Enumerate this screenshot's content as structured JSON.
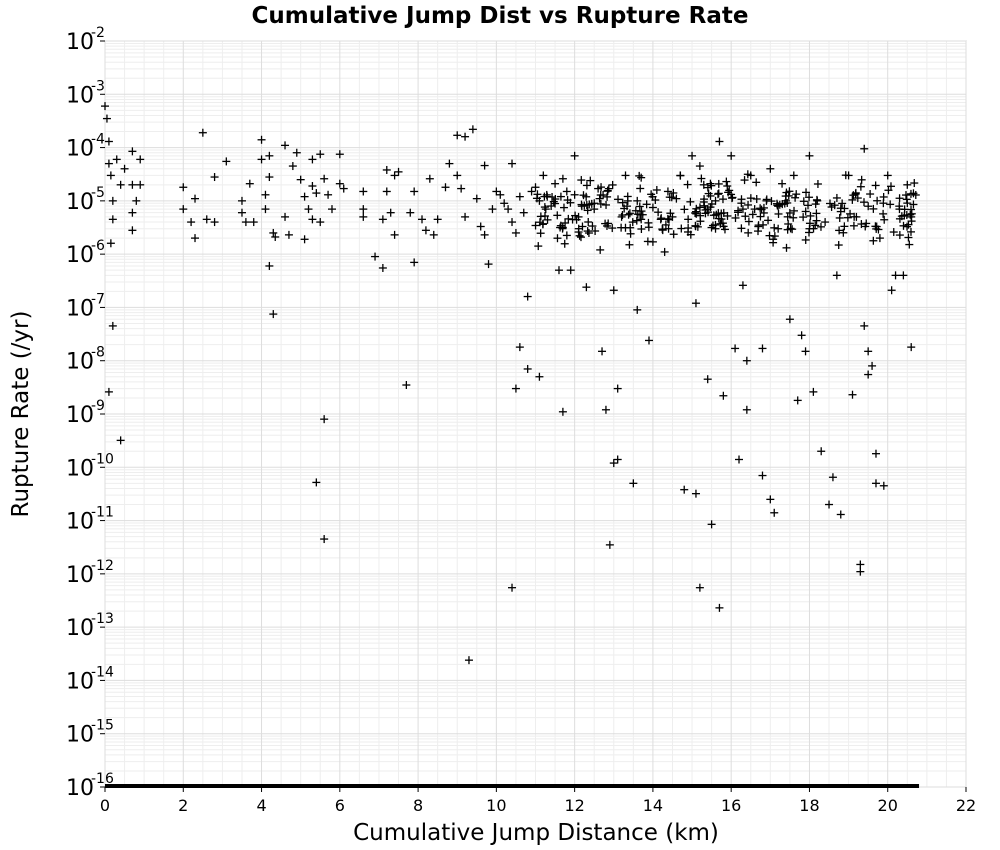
{
  "chart_data": {
    "type": "scatter",
    "title": "Cumulative Jump Dist vs Rupture Rate",
    "xlabel": "Cumulative Jump Distance (km)",
    "ylabel": "Rupture Rate (/yr)",
    "xlim": [
      0,
      22
    ],
    "ylim": [
      1e-16,
      0.01
    ],
    "y_scale": "log",
    "grid": true,
    "marker": "plus",
    "marker_color": "#000000",
    "x_ticks": [
      "0",
      "2",
      "4",
      "6",
      "8",
      "10",
      "12",
      "14",
      "16",
      "18",
      "20",
      "22"
    ],
    "y_ticks": [
      {
        "base": "10",
        "exp": "-2"
      },
      {
        "base": "10",
        "exp": "-3"
      },
      {
        "base": "10",
        "exp": "-4"
      },
      {
        "base": "10",
        "exp": "-5"
      },
      {
        "base": "10",
        "exp": "-6"
      },
      {
        "base": "10",
        "exp": "-7"
      },
      {
        "base": "10",
        "exp": "-8"
      },
      {
        "base": "10",
        "exp": "-9"
      },
      {
        "base": "10",
        "exp": "-10"
      },
      {
        "base": "10",
        "exp": "-11"
      },
      {
        "base": "10",
        "exp": "-12"
      },
      {
        "base": "10",
        "exp": "-13"
      },
      {
        "base": "10",
        "exp": "-14"
      },
      {
        "base": "10",
        "exp": "-15"
      },
      {
        "base": "10",
        "exp": "-16"
      }
    ],
    "zero_rate_band": {
      "x_range": [
        0,
        20.8
      ],
      "y": 1e-16
    },
    "points": [
      [
        0.0,
        0.0006
      ],
      [
        0.05,
        0.00035
      ],
      [
        0.1,
        0.00013
      ],
      [
        0.1,
        5e-05
      ],
      [
        0.15,
        3e-05
      ],
      [
        0.15,
        1.6e-06
      ],
      [
        0.2,
        1e-05
      ],
      [
        0.2,
        4.5e-06
      ],
      [
        0.1,
        2.6e-09
      ],
      [
        0.2,
        4.5e-08
      ],
      [
        0.4,
        3.2e-10
      ],
      [
        0.3,
        6e-05
      ],
      [
        0.5,
        4e-05
      ],
      [
        0.4,
        2e-05
      ],
      [
        0.7,
        8.5e-05
      ],
      [
        0.7,
        2e-05
      ],
      [
        0.8,
        1e-05
      ],
      [
        0.7,
        6e-06
      ],
      [
        0.7,
        2.8e-06
      ],
      [
        0.9,
        6e-05
      ],
      [
        0.9,
        2e-05
      ],
      [
        2.0,
        1.8e-05
      ],
      [
        2.0,
        7e-06
      ],
      [
        2.2,
        4e-06
      ],
      [
        2.3,
        2e-06
      ],
      [
        2.3,
        1.1e-05
      ],
      [
        2.5,
        0.00019
      ],
      [
        2.6,
        4.5e-06
      ],
      [
        2.8,
        2.8e-05
      ],
      [
        2.8,
        4e-06
      ],
      [
        3.1,
        5.5e-05
      ],
      [
        3.5,
        1e-05
      ],
      [
        3.5,
        6e-06
      ],
      [
        3.6,
        4e-06
      ],
      [
        3.7,
        2.1e-05
      ],
      [
        3.8,
        4e-06
      ],
      [
        4.0,
        0.00014
      ],
      [
        4.0,
        6e-05
      ],
      [
        4.1,
        1.3e-05
      ],
      [
        4.1,
        7e-06
      ],
      [
        4.2,
        2.8e-05
      ],
      [
        4.2,
        6e-07
      ],
      [
        4.2,
        7e-05
      ],
      [
        4.3,
        2.5e-06
      ],
      [
        4.35,
        2.1e-06
      ],
      [
        4.3,
        7.5e-08
      ],
      [
        4.6,
        0.00011
      ],
      [
        4.6,
        5e-06
      ],
      [
        4.7,
        2.3e-06
      ],
      [
        4.8,
        4.5e-05
      ],
      [
        4.9,
        8e-05
      ],
      [
        5.0,
        2.5e-05
      ],
      [
        5.1,
        1.9e-06
      ],
      [
        5.1,
        1.2e-05
      ],
      [
        5.2,
        7e-06
      ],
      [
        5.3,
        6e-05
      ],
      [
        5.3,
        1.9e-05
      ],
      [
        5.3,
        4.5e-06
      ],
      [
        5.4,
        1.4e-05
      ],
      [
        5.4,
        5.2e-11
      ],
      [
        5.5,
        7.5e-05
      ],
      [
        5.5,
        4e-06
      ],
      [
        5.6,
        2.6e-05
      ],
      [
        5.6,
        8e-10
      ],
      [
        5.7,
        1.3e-05
      ],
      [
        5.6,
        4.5e-12
      ],
      [
        5.8,
        7e-06
      ],
      [
        6.0,
        7.5e-05
      ],
      [
        6.0,
        2.1e-05
      ],
      [
        6.1,
        1.7e-05
      ],
      [
        6.6,
        1.5e-05
      ],
      [
        6.6,
        7e-06
      ],
      [
        6.6,
        5e-06
      ],
      [
        6.9,
        9e-07
      ],
      [
        7.1,
        5.5e-07
      ],
      [
        7.1,
        4.5e-06
      ],
      [
        7.2,
        1.5e-05
      ],
      [
        7.2,
        3.8e-05
      ],
      [
        7.3,
        6e-06
      ],
      [
        7.4,
        2.3e-06
      ],
      [
        7.4,
        3e-05
      ],
      [
        7.5,
        3.5e-05
      ],
      [
        7.7,
        3.5e-09
      ],
      [
        7.8,
        6e-06
      ],
      [
        7.9,
        7e-07
      ],
      [
        7.9,
        1.5e-05
      ],
      [
        8.1,
        4.5e-06
      ],
      [
        8.2,
        2.8e-06
      ],
      [
        8.3,
        2.6e-05
      ],
      [
        8.4,
        2.3e-06
      ],
      [
        8.5,
        4.5e-06
      ],
      [
        8.7,
        1.8e-05
      ],
      [
        8.8,
        5e-05
      ],
      [
        9.0,
        0.00017
      ],
      [
        9.0,
        3e-05
      ],
      [
        9.1,
        1.7e-05
      ],
      [
        9.2,
        0.00016
      ],
      [
        9.2,
        5e-06
      ],
      [
        9.3,
        2.4e-14
      ],
      [
        9.4,
        0.00022
      ],
      [
        9.5,
        1.1e-05
      ],
      [
        9.6,
        3.3e-06
      ],
      [
        9.7,
        2.3e-06
      ],
      [
        9.7,
        4.6e-05
      ],
      [
        9.8,
        6.5e-07
      ],
      [
        9.9,
        7e-06
      ],
      [
        10.0,
        1.5e-05
      ],
      [
        10.1,
        1.3e-05
      ],
      [
        10.2,
        9e-06
      ],
      [
        10.3,
        7e-06
      ],
      [
        10.4,
        5e-05
      ],
      [
        10.4,
        4e-06
      ],
      [
        10.5,
        2.5e-06
      ],
      [
        10.5,
        3e-09
      ],
      [
        10.6,
        1.8e-08
      ],
      [
        10.6,
        1.2e-05
      ],
      [
        10.7,
        6e-06
      ],
      [
        10.8,
        7e-09
      ],
      [
        10.8,
        1.6e-07
      ],
      [
        10.4,
        5.5e-13
      ],
      [
        10.9,
        1.5e-05
      ],
      [
        11.0,
        1.8e-05
      ],
      [
        11.1,
        1e-05
      ],
      [
        11.1,
        5e-09
      ],
      [
        11.2,
        3e-05
      ],
      [
        11.3,
        1.2e-05
      ],
      [
        11.4,
        8e-06
      ],
      [
        11.5,
        2.1e-05
      ],
      [
        11.6,
        5e-07
      ],
      [
        11.7,
        2.6e-05
      ],
      [
        11.7,
        1.1e-09
      ],
      [
        11.8,
        1.5e-05
      ],
      [
        11.9,
        5e-07
      ],
      [
        12.0,
        7e-05
      ],
      [
        12.0,
        1.3e-05
      ],
      [
        12.1,
        5e-06
      ],
      [
        12.1,
        2.6e-06
      ],
      [
        12.2,
        3.3e-06
      ],
      [
        12.3,
        2.4e-07
      ],
      [
        12.4,
        2.4e-05
      ],
      [
        12.5,
        7e-06
      ],
      [
        12.6,
        1.7e-05
      ],
      [
        12.7,
        1.5e-08
      ],
      [
        12.8,
        1.2e-09
      ],
      [
        12.9,
        3.5e-12
      ],
      [
        13.0,
        2.1e-07
      ],
      [
        13.0,
        1.2e-10
      ],
      [
        13.1,
        1.4e-10
      ],
      [
        13.1,
        3e-09
      ],
      [
        13.2,
        5e-06
      ],
      [
        13.3,
        3e-05
      ],
      [
        13.4,
        1.5e-06
      ],
      [
        13.5,
        5e-11
      ],
      [
        13.6,
        1e-05
      ],
      [
        13.6,
        9e-08
      ],
      [
        13.7,
        4.5e-06
      ],
      [
        13.9,
        2.4e-08
      ],
      [
        14.0,
        7.5e-06
      ],
      [
        14.0,
        1.7e-06
      ],
      [
        14.1,
        1.6e-05
      ],
      [
        14.2,
        4.5e-06
      ],
      [
        14.3,
        1.1e-06
      ],
      [
        14.4,
        3e-06
      ],
      [
        14.5,
        5e-06
      ],
      [
        14.6,
        1.1e-05
      ],
      [
        14.7,
        3e-05
      ],
      [
        14.8,
        3.8e-11
      ],
      [
        14.9,
        4.5e-06
      ],
      [
        15.0,
        7e-05
      ],
      [
        15.1,
        3.2e-11
      ],
      [
        15.1,
        1.2e-07
      ],
      [
        15.2,
        5.5e-13
      ],
      [
        15.2,
        4.5e-05
      ],
      [
        15.3,
        2e-05
      ],
      [
        15.4,
        7e-06
      ],
      [
        15.4,
        4.5e-09
      ],
      [
        15.5,
        8.5e-12
      ],
      [
        15.6,
        3e-06
      ],
      [
        15.6,
        1e-05
      ],
      [
        15.7,
        2.3e-13
      ],
      [
        15.7,
        0.00013
      ],
      [
        15.8,
        2.2e-09
      ],
      [
        15.9,
        1.9e-05
      ],
      [
        16.0,
        7e-05
      ],
      [
        16.1,
        1.7e-08
      ],
      [
        16.2,
        1.4e-10
      ],
      [
        16.3,
        7e-06
      ],
      [
        16.3,
        2.6e-07
      ],
      [
        16.4,
        1e-08
      ],
      [
        16.4,
        1.2e-09
      ],
      [
        16.5,
        3e-05
      ],
      [
        16.6,
        7e-06
      ],
      [
        16.7,
        3.5e-06
      ],
      [
        16.8,
        1.7e-08
      ],
      [
        16.8,
        7e-11
      ],
      [
        16.9,
        1e-05
      ],
      [
        17.0,
        2.5e-11
      ],
      [
        17.0,
        4e-05
      ],
      [
        17.1,
        1.4e-11
      ],
      [
        17.2,
        3e-06
      ],
      [
        17.3,
        2.1e-05
      ],
      [
        17.4,
        1e-05
      ],
      [
        17.5,
        6e-08
      ],
      [
        17.6,
        3e-05
      ],
      [
        17.7,
        1.8e-09
      ],
      [
        17.8,
        3e-08
      ],
      [
        17.9,
        1.5e-08
      ],
      [
        18.0,
        7e-05
      ],
      [
        18.0,
        3e-06
      ],
      [
        18.1,
        2.6e-09
      ],
      [
        18.2,
        1e-05
      ],
      [
        18.3,
        2e-10
      ],
      [
        18.4,
        4e-06
      ],
      [
        18.5,
        2e-11
      ],
      [
        18.6,
        6.5e-11
      ],
      [
        18.7,
        4e-07
      ],
      [
        18.8,
        1.3e-11
      ],
      [
        19.0,
        3e-05
      ],
      [
        19.1,
        2.3e-09
      ],
      [
        19.2,
        5e-06
      ],
      [
        19.3,
        1.5e-12
      ],
      [
        19.3,
        1.1e-12
      ],
      [
        19.4,
        9.5e-05
      ],
      [
        19.4,
        4.5e-08
      ],
      [
        19.5,
        5.5e-09
      ],
      [
        19.5,
        1.5e-08
      ],
      [
        19.6,
        8e-09
      ],
      [
        19.7,
        1.8e-10
      ],
      [
        19.7,
        5e-11
      ],
      [
        19.8,
        2e-06
      ],
      [
        19.9,
        4.5e-11
      ],
      [
        20.0,
        3e-05
      ],
      [
        20.1,
        2.1e-07
      ],
      [
        20.2,
        4e-07
      ],
      [
        20.3,
        7e-06
      ],
      [
        20.4,
        4e-07
      ],
      [
        20.5,
        2e-05
      ],
      [
        20.6,
        1.8e-08
      ],
      [
        20.6,
        5e-06
      ]
    ],
    "dense_band": {
      "x_range": [
        11.0,
        20.8
      ],
      "y_range": [
        1e-06,
        5e-05
      ],
      "count": 320,
      "seed": 7
    }
  }
}
